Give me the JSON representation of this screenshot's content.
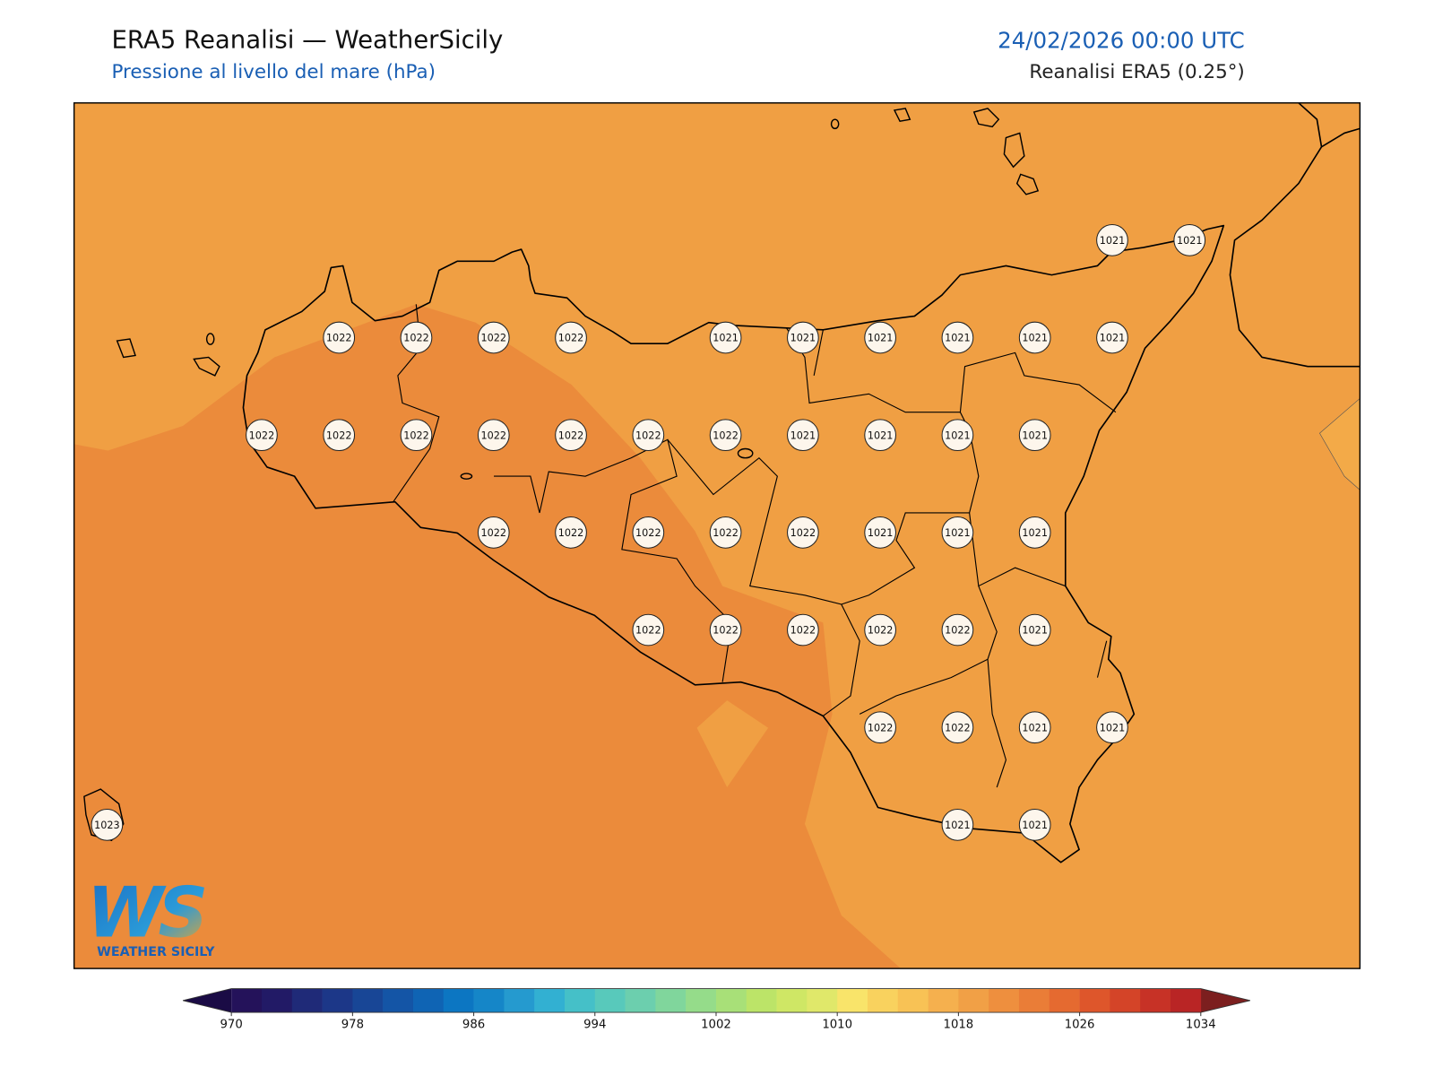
{
  "header": {
    "title": "ERA5 Reanalisi — WeatherSicily",
    "subtitle": "Pressione al livello del mare (hPa)",
    "datetime": "24/02/2026 00:00 UTC",
    "source": "Reanalisi ERA5 (0.25°)"
  },
  "stations": {
    "rows": [
      [
        null,
        null,
        null,
        null,
        null,
        null,
        null,
        null,
        null,
        null,
        null,
        null,
        null,
        1021,
        1021
      ],
      [
        null,
        null,
        null,
        1022,
        1022,
        1022,
        1022,
        null,
        1021,
        1021,
        1021,
        1021,
        1021,
        1021,
        null
      ],
      [
        null,
        null,
        1022,
        1022,
        1022,
        1022,
        1022,
        1022,
        1022,
        1021,
        1021,
        1021,
        1021,
        null,
        null
      ],
      [
        null,
        null,
        null,
        null,
        null,
        1022,
        1022,
        1022,
        1022,
        1022,
        1021,
        1021,
        1021,
        null,
        null
      ],
      [
        null,
        null,
        null,
        null,
        null,
        null,
        null,
        1022,
        1022,
        1022,
        1022,
        1022,
        1021,
        null,
        null
      ],
      [
        null,
        null,
        null,
        null,
        null,
        null,
        null,
        null,
        null,
        null,
        1022,
        1022,
        1021,
        1021,
        null
      ],
      [
        1023,
        null,
        null,
        null,
        null,
        null,
        null,
        null,
        null,
        null,
        null,
        1021,
        1021,
        null,
        null
      ]
    ]
  },
  "colorbar": {
    "boundaries": [
      970,
      972,
      974,
      976,
      978,
      980,
      982,
      984,
      986,
      988,
      990,
      992,
      994,
      996,
      998,
      1000,
      1002,
      1004,
      1006,
      1008,
      1010,
      1012,
      1014,
      1016,
      1018,
      1020,
      1022,
      1024,
      1026,
      1028,
      1030,
      1032,
      1034
    ],
    "colors": [
      "#24125a",
      "#221a66",
      "#1f2a78",
      "#1c3788",
      "#184696",
      "#1455a6",
      "#0f64b4",
      "#0c76c2",
      "#1586c8",
      "#259acf",
      "#32b0d2",
      "#45c0c8",
      "#58c9bb",
      "#6ccfae",
      "#80d69c",
      "#95dc8a",
      "#a8e078",
      "#bce468",
      "#cfe765",
      "#e0e86a",
      "#f9e46a",
      "#f9d25e",
      "#f8c255",
      "#f5b04e",
      "#f1a046",
      "#ee8f3e",
      "#ea7d37",
      "#e56a30",
      "#de562b",
      "#d44428",
      "#c73226",
      "#b92525"
    ],
    "under_color": "#1a0b45",
    "over_color": "#7c1f1f",
    "ticks": [
      970,
      978,
      986,
      994,
      1002,
      1010,
      1018,
      1026,
      1034
    ]
  },
  "logo": {
    "mark": "WS",
    "text": "WEATHER SICILY"
  }
}
